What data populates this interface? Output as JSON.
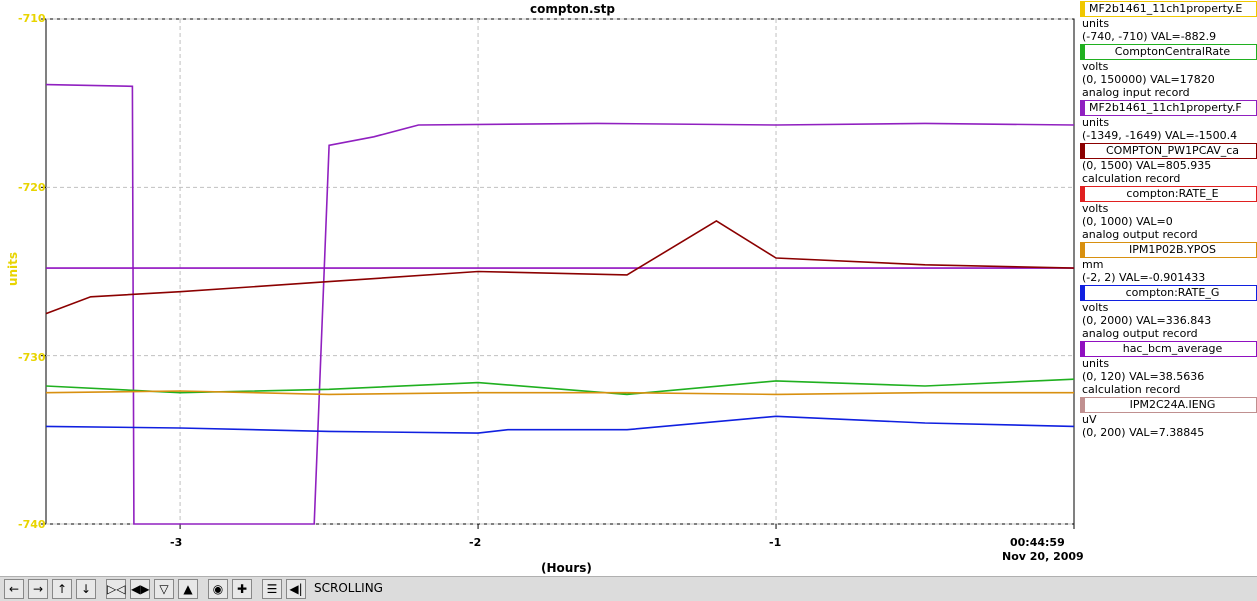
{
  "title": "compton.stp",
  "y_axis_label": "units",
  "x_axis_label": "(Hours)",
  "end_time": "00:44:59",
  "end_date": "Nov 20, 2009",
  "toolbar": {
    "mode": "SCROLLING"
  },
  "legend": [
    {
      "name": "MF2b1461_11ch1property.E",
      "color": "#f0c800",
      "lines": [
        "units",
        "(-740, -710) VAL=-882.9"
      ]
    },
    {
      "name": "ComptonCentralRate",
      "color": "#20b020",
      "lines": [
        "volts",
        "(0, 150000) VAL=17820",
        "analog input record"
      ]
    },
    {
      "name": "MF2b1461_11ch1property.F",
      "color": "#9020c0",
      "lines": [
        "units",
        "(-1349, -1649) VAL=-1500.4"
      ]
    },
    {
      "name": "COMPTON_PW1PCAV_ca",
      "color": "#8b0000",
      "lines": [
        "(0, 1500) VAL=805.935",
        "calculation record"
      ]
    },
    {
      "name": "compton:RATE_E",
      "color": "#e02020",
      "lines": [
        "volts",
        "(0, 1000) VAL=0",
        "analog output record"
      ]
    },
    {
      "name": "IPM1P02B.YPOS",
      "color": "#d89010",
      "lines": [
        "mm",
        "(-2, 2) VAL=-0.901433"
      ]
    },
    {
      "name": "compton:RATE_G",
      "color": "#1020e0",
      "lines": [
        "volts",
        "(0, 2000) VAL=336.843",
        "analog output record"
      ]
    },
    {
      "name": "hac_bcm_average",
      "color": "#9010c0",
      "lines": [
        "units",
        "(0, 120) VAL=38.5636",
        "calculation record"
      ]
    },
    {
      "name": "IPM2C24A.IENG",
      "color": "#c09090",
      "lines": [
        "uV",
        "(0, 200) VAL=7.38845"
      ]
    }
  ],
  "chart_data": {
    "type": "line",
    "title": "compton.stp",
    "ylabel": "units",
    "xlabel": "(Hours)",
    "ylim": [
      -740,
      -710
    ],
    "xlim": [
      -3.45,
      0
    ],
    "yticks": [
      -710,
      -720,
      -730,
      -740
    ],
    "xticks": [
      -3,
      -2,
      -1
    ],
    "grid": true,
    "legend_position": "right",
    "series": [
      {
        "name": "MF2b1461_11ch1property.F",
        "color": "#9020c0",
        "values": [
          [
            -3.45,
            -713.9
          ],
          [
            -3.16,
            -714.0
          ],
          [
            -3.155,
            -740
          ],
          [
            -2.55,
            -740
          ],
          [
            -2.5,
            -717.5
          ],
          [
            -2.35,
            -717.0
          ],
          [
            -2.2,
            -716.3
          ],
          [
            -1.6,
            -716.2
          ],
          [
            -1.0,
            -716.3
          ],
          [
            -0.5,
            -716.2
          ],
          [
            0,
            -716.3
          ]
        ]
      },
      {
        "name": "hac_bcm_average",
        "color": "#9010c0",
        "values": [
          [
            -3.45,
            -724.8
          ],
          [
            0,
            -724.8
          ]
        ]
      },
      {
        "name": "COMPTON_PW1PCAV_ca",
        "color": "#8b0000",
        "values": [
          [
            -3.45,
            -727.5
          ],
          [
            -3.3,
            -726.5
          ],
          [
            -3.0,
            -726.2
          ],
          [
            -2.5,
            -725.6
          ],
          [
            -2.0,
            -725.0
          ],
          [
            -1.5,
            -725.2
          ],
          [
            -1.2,
            -722.0
          ],
          [
            -1.0,
            -724.2
          ],
          [
            -0.5,
            -724.6
          ],
          [
            0,
            -724.8
          ]
        ]
      },
      {
        "name": "ComptonCentralRate",
        "color": "#20b020",
        "values": [
          [
            -3.45,
            -731.8
          ],
          [
            -3.0,
            -732.2
          ],
          [
            -2.5,
            -732.0
          ],
          [
            -2.0,
            -731.6
          ],
          [
            -1.5,
            -732.3
          ],
          [
            -1.0,
            -731.5
          ],
          [
            -0.5,
            -731.8
          ],
          [
            0,
            -731.4
          ]
        ]
      },
      {
        "name": "IPM1P02B.YPOS",
        "color": "#d89010",
        "values": [
          [
            -3.45,
            -732.2
          ],
          [
            -3.0,
            -732.1
          ],
          [
            -2.5,
            -732.3
          ],
          [
            -2.0,
            -732.2
          ],
          [
            -1.5,
            -732.2
          ],
          [
            -1.0,
            -732.3
          ],
          [
            -0.5,
            -732.2
          ],
          [
            0,
            -732.2
          ]
        ]
      },
      {
        "name": "compton:RATE_G",
        "color": "#1020e0",
        "values": [
          [
            -3.45,
            -734.2
          ],
          [
            -3.0,
            -734.3
          ],
          [
            -2.5,
            -734.5
          ],
          [
            -2.0,
            -734.6
          ],
          [
            -1.9,
            -734.4
          ],
          [
            -1.5,
            -734.4
          ],
          [
            -1.0,
            -733.6
          ],
          [
            -0.5,
            -734.0
          ],
          [
            0,
            -734.2
          ]
        ]
      }
    ]
  }
}
